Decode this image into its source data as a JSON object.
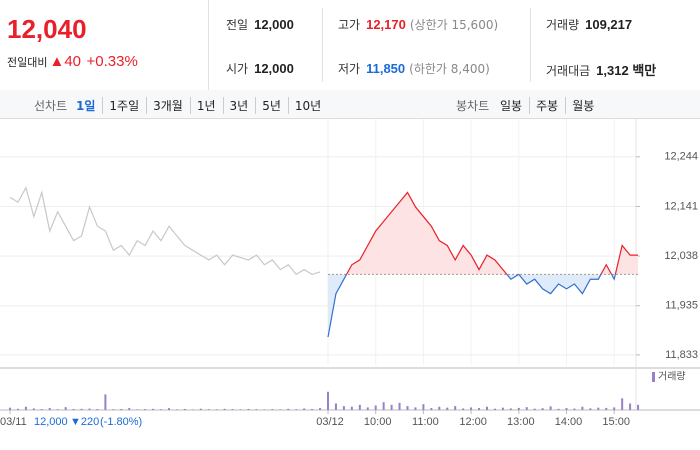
{
  "quote": {
    "price": "12,040",
    "change_label": "전일대비",
    "change": "▲40",
    "change_pct": "+0.33%"
  },
  "stats": [
    {
      "label": "전일",
      "value": "12,000"
    },
    {
      "label": "고가",
      "value": "12,170",
      "note": "(상한가 15,600)",
      "color": "#e8202a"
    },
    {
      "label": "거래량",
      "value": "109,217"
    },
    {
      "label": "시가",
      "value": "12,000"
    },
    {
      "label": "저가",
      "value": "11,850",
      "note": "(하한가 8,400)",
      "color": "#1a6bd8"
    },
    {
      "label": "거래대금",
      "value": "1,312 백만"
    }
  ],
  "tabs": {
    "line_label": "선차트",
    "line_tabs": [
      "1일",
      "1주일",
      "3개월",
      "1년",
      "3년",
      "5년",
      "10년"
    ],
    "line_active": 0,
    "candle_label": "봉차트",
    "candle_tabs": [
      "일봉",
      "주봉",
      "월봉"
    ]
  },
  "chart_data": {
    "type": "line",
    "categories": [
      "03/11",
      null,
      null,
      null,
      null,
      null,
      null,
      null,
      null,
      null,
      null,
      null,
      null,
      null,
      null,
      null,
      null,
      null,
      null,
      null,
      null,
      null,
      null,
      null,
      null,
      null,
      null,
      null,
      null,
      null,
      null,
      null,
      null,
      null,
      null,
      null,
      null,
      null,
      null,
      null,
      "03/12",
      null,
      null,
      null,
      null,
      null,
      "10:00",
      null,
      null,
      null,
      null,
      null,
      "11:00",
      null,
      null,
      null,
      null,
      null,
      "12:00",
      null,
      null,
      null,
      null,
      null,
      "13:00",
      null,
      null,
      null,
      null,
      null,
      "14:00",
      null,
      null,
      null,
      null,
      null,
      "15:00",
      null,
      null,
      null
    ],
    "series": [
      {
        "color": "#c8c8c8",
        "values": [
          12160,
          12150,
          12180,
          12120,
          12170,
          12090,
          12130,
          12100,
          12070,
          12080,
          12140,
          12100,
          12090,
          12050,
          12060,
          12040,
          12070,
          12060,
          12090,
          12070,
          12100,
          12080,
          12060,
          12050,
          12040,
          12030,
          12040,
          12020,
          12040,
          12035,
          12030,
          12040,
          12020,
          12030,
          12010,
          12020,
          12000,
          12010,
          12000,
          12005,
          null,
          null,
          null,
          null,
          null,
          null,
          null,
          null,
          null,
          null,
          null,
          null,
          null,
          null,
          null,
          null,
          null,
          null,
          null,
          null,
          null,
          null,
          null,
          null,
          null,
          null,
          null,
          null,
          null,
          null,
          null,
          null,
          null,
          null,
          null,
          null,
          null,
          null,
          null,
          null
        ]
      },
      {
        "color": "#e8202a",
        "color_below": "#2f6fd0",
        "values": [
          null,
          null,
          null,
          null,
          null,
          null,
          null,
          null,
          null,
          null,
          null,
          null,
          null,
          null,
          null,
          null,
          null,
          null,
          null,
          null,
          null,
          null,
          null,
          null,
          null,
          null,
          null,
          null,
          null,
          null,
          null,
          null,
          null,
          null,
          null,
          null,
          null,
          null,
          null,
          null,
          11870,
          11960,
          11990,
          12020,
          12030,
          12060,
          12090,
          12110,
          12130,
          12150,
          12170,
          12140,
          12120,
          12100,
          12070,
          12060,
          12030,
          12060,
          12040,
          12010,
          12040,
          12030,
          12010,
          11990,
          12000,
          11980,
          11990,
          11970,
          11960,
          11980,
          11970,
          11980,
          11960,
          11990,
          11990,
          12020,
          11990,
          12060,
          12040,
          12040
        ]
      },
      {
        "name": "거래량",
        "color": "#9a7fc9",
        "axis": "y2",
        "values": [
          1800,
          900,
          2500,
          1200,
          700,
          1500,
          600,
          2200,
          800,
          900,
          1100,
          700,
          12000,
          600,
          800,
          1500,
          500,
          700,
          900,
          600,
          1400,
          500,
          800,
          400,
          1000,
          600,
          500,
          900,
          700,
          500,
          800,
          600,
          400,
          700,
          500,
          900,
          600,
          1200,
          800,
          1500,
          14000,
          5000,
          3000,
          2500,
          4000,
          2000,
          3500,
          6000,
          4000,
          5500,
          3000,
          2000,
          4500,
          1500,
          2500,
          1800,
          3000,
          1200,
          2000,
          1500,
          2500,
          1000,
          1800,
          1200,
          1600,
          2200,
          1000,
          1400,
          2800,
          900,
          1500,
          1100,
          2500,
          1300,
          1800,
          1600,
          2000,
          9000,
          5000,
          4000
        ]
      }
    ],
    "baseline": 12000,
    "ylim": [
      11812,
      12310
    ],
    "yticks": [
      {
        "value": 12244,
        "label": "12,244"
      },
      {
        "value": 12141,
        "label": "12,141"
      },
      {
        "value": 12038,
        "label": "12,038"
      },
      {
        "value": 11935,
        "label": "11,935"
      },
      {
        "value": 11833,
        "label": "11,833"
      }
    ],
    "y2lim": [
      0,
      30000
    ],
    "grid": true,
    "prev_day": {
      "close": "12,000",
      "change": "▼220",
      "change_pct": "(-1.80%)"
    }
  }
}
